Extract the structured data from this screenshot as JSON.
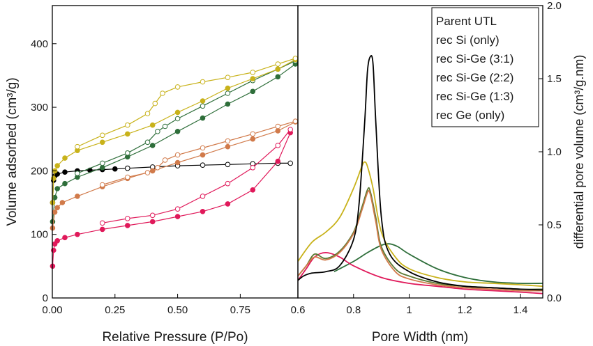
{
  "chart_data": [
    {
      "type": "scatter",
      "panel": "left",
      "xlabel": "Relative Pressure (P/Po)",
      "ylabel": "Volume adsorbed (cm³/g)",
      "xlim": [
        0,
        0.98
      ],
      "ylim": [
        0,
        460
      ],
      "x_ticks": [
        "0.00",
        "0.25",
        "0.50",
        "0.75"
      ],
      "y_ticks": [
        "0",
        "100",
        "200",
        "300",
        "400"
      ],
      "x_tick_values": [
        0,
        0.25,
        0.5,
        0.75
      ],
      "y_tick_values": [
        0,
        100,
        200,
        300,
        400
      ],
      "grid": false,
      "series": [
        {
          "color": "#000000",
          "adsorption": [
            [
              0.001,
              150
            ],
            [
              0.005,
              185
            ],
            [
              0.01,
              192
            ],
            [
              0.02,
              195
            ],
            [
              0.05,
              198
            ],
            [
              0.1,
              200
            ],
            [
              0.15,
              201
            ],
            [
              0.2,
              202
            ],
            [
              0.25,
              203
            ],
            [
              0.3,
              204
            ]
          ],
          "desorption": [
            [
              0.3,
              204
            ],
            [
              0.4,
              206
            ],
            [
              0.5,
              208
            ],
            [
              0.6,
              209
            ],
            [
              0.7,
              210
            ],
            [
              0.8,
              211
            ],
            [
              0.9,
              212
            ],
            [
              0.95,
              212
            ]
          ]
        },
        {
          "color": "#2e6e3a",
          "adsorption": [
            [
              0.001,
              120
            ],
            [
              0.01,
              158
            ],
            [
              0.02,
              172
            ],
            [
              0.05,
              180
            ],
            [
              0.1,
              190
            ],
            [
              0.2,
              205
            ],
            [
              0.3,
              222
            ],
            [
              0.4,
              240
            ],
            [
              0.5,
              262
            ],
            [
              0.6,
              283
            ],
            [
              0.7,
              305
            ],
            [
              0.8,
              325
            ],
            [
              0.9,
              348
            ],
            [
              0.97,
              368
            ]
          ],
          "desorption": [
            [
              0.97,
              373
            ],
            [
              0.9,
              360
            ],
            [
              0.8,
              342
            ],
            [
              0.7,
              322
            ],
            [
              0.6,
              302
            ],
            [
              0.5,
              282
            ],
            [
              0.45,
              270
            ],
            [
              0.42,
              262
            ],
            [
              0.38,
              245
            ],
            [
              0.3,
              228
            ],
            [
              0.2,
              212
            ],
            [
              0.1,
              196
            ]
          ]
        },
        {
          "color": "#c8b21a",
          "adsorption": [
            [
              0.001,
              150
            ],
            [
              0.005,
              188
            ],
            [
              0.01,
              200
            ],
            [
              0.02,
              208
            ],
            [
              0.05,
              220
            ],
            [
              0.1,
              232
            ],
            [
              0.2,
              245
            ],
            [
              0.3,
              258
            ],
            [
              0.4,
              272
            ],
            [
              0.5,
              292
            ],
            [
              0.6,
              310
            ],
            [
              0.7,
              330
            ],
            [
              0.8,
              345
            ],
            [
              0.9,
              360
            ],
            [
              0.97,
              375
            ]
          ],
          "desorption": [
            [
              0.97,
              377
            ],
            [
              0.9,
              368
            ],
            [
              0.8,
              355
            ],
            [
              0.7,
              347
            ],
            [
              0.6,
              340
            ],
            [
              0.5,
              332
            ],
            [
              0.44,
              322
            ],
            [
              0.41,
              306
            ],
            [
              0.38,
              290
            ],
            [
              0.3,
              272
            ],
            [
              0.2,
              256
            ],
            [
              0.1,
              238
            ]
          ]
        },
        {
          "color": "#d17a4a",
          "adsorption": [
            [
              0.001,
              110
            ],
            [
              0.01,
              135
            ],
            [
              0.02,
              142
            ],
            [
              0.04,
              150
            ],
            [
              0.1,
              160
            ],
            [
              0.2,
              175
            ],
            [
              0.3,
              188
            ],
            [
              0.4,
              200
            ],
            [
              0.5,
              213
            ],
            [
              0.6,
              225
            ],
            [
              0.7,
              238
            ],
            [
              0.8,
              250
            ],
            [
              0.9,
              263
            ],
            [
              0.97,
              277
            ]
          ],
          "desorption": [
            [
              0.97,
              278
            ],
            [
              0.9,
              270
            ],
            [
              0.8,
              258
            ],
            [
              0.7,
              247
            ],
            [
              0.6,
              236
            ],
            [
              0.5,
              225
            ],
            [
              0.45,
              217
            ],
            [
              0.42,
              205
            ],
            [
              0.38,
              197
            ],
            [
              0.3,
              190
            ],
            [
              0.2,
              178
            ]
          ]
        },
        {
          "color": "#e0195a",
          "adsorption": [
            [
              0.001,
              50
            ],
            [
              0.005,
              75
            ],
            [
              0.01,
              85
            ],
            [
              0.02,
              90
            ],
            [
              0.05,
              95
            ],
            [
              0.1,
              100
            ],
            [
              0.2,
              108
            ],
            [
              0.3,
              114
            ],
            [
              0.4,
              120
            ],
            [
              0.5,
              128
            ],
            [
              0.6,
              136
            ],
            [
              0.7,
              148
            ],
            [
              0.8,
              170
            ],
            [
              0.9,
              215
            ],
            [
              0.95,
              260
            ]
          ],
          "desorption": [
            [
              0.95,
              265
            ],
            [
              0.9,
              240
            ],
            [
              0.8,
              205
            ],
            [
              0.7,
              180
            ],
            [
              0.6,
              160
            ],
            [
              0.5,
              140
            ],
            [
              0.4,
              130
            ],
            [
              0.3,
              125
            ],
            [
              0.2,
              118
            ]
          ]
        }
      ]
    },
    {
      "type": "line",
      "panel": "right",
      "xlabel": "Pore Width (nm)",
      "ylabel": "differential pore volume (cm³/g.nm)",
      "xlim": [
        0.6,
        1.48
      ],
      "ylim": [
        0,
        2.0
      ],
      "x_ticks": [
        "0.6",
        "0.8",
        "1",
        "1.2",
        "1.4"
      ],
      "y_ticks": [
        "0.0",
        "0.5",
        "1.0",
        "1.5",
        "2.0"
      ],
      "x_tick_values": [
        0.6,
        0.8,
        1.0,
        1.2,
        1.4
      ],
      "y_tick_values": [
        0,
        0.5,
        1.0,
        1.5,
        2.0
      ],
      "y_axis_side": "right",
      "grid": false,
      "legend_position": "top-right",
      "series": [
        {
          "name": "Parent UTL",
          "color": "#000000",
          "x": [
            0.6,
            0.62,
            0.65,
            0.7,
            0.75,
            0.8,
            0.82,
            0.84,
            0.85,
            0.86,
            0.87,
            0.88,
            0.9,
            0.93,
            1.0,
            1.1,
            1.2,
            1.3,
            1.4,
            1.48
          ],
          "y": [
            0.12,
            0.15,
            0.17,
            0.18,
            0.22,
            0.4,
            0.65,
            1.2,
            1.55,
            1.65,
            1.6,
            1.2,
            0.55,
            0.3,
            0.18,
            0.11,
            0.08,
            0.07,
            0.06,
            0.055
          ]
        },
        {
          "name": "rec Si (only)",
          "color": "#2e6e3a",
          "x": [
            0.73,
            0.8,
            0.85,
            0.9,
            0.93,
            0.96,
            1.0,
            1.1,
            1.2,
            1.3,
            1.4,
            1.48
          ],
          "y": [
            0.18,
            0.25,
            0.31,
            0.36,
            0.37,
            0.35,
            0.3,
            0.2,
            0.14,
            0.11,
            0.1,
            0.1
          ]
        },
        {
          "name": "rec Si-Ge (3:1)",
          "color": "#5c7a34",
          "x": [
            0.6,
            0.63,
            0.66,
            0.7,
            0.75,
            0.8,
            0.83,
            0.85,
            0.86,
            0.88,
            0.9,
            0.95,
            1.0,
            1.1,
            1.2,
            1.3,
            1.4,
            1.48
          ],
          "y": [
            0.15,
            0.22,
            0.3,
            0.27,
            0.32,
            0.45,
            0.62,
            0.74,
            0.73,
            0.55,
            0.35,
            0.2,
            0.15,
            0.1,
            0.08,
            0.07,
            0.06,
            0.06
          ]
        },
        {
          "name": "rec Si-Ge (2:2)",
          "color": "#c8b21a",
          "x": [
            0.6,
            0.65,
            0.7,
            0.75,
            0.8,
            0.83,
            0.84,
            0.85,
            0.87,
            0.9,
            0.95,
            1.0,
            1.1,
            1.2,
            1.3,
            1.4,
            1.48
          ],
          "y": [
            0.25,
            0.38,
            0.45,
            0.55,
            0.75,
            0.9,
            0.93,
            0.9,
            0.75,
            0.45,
            0.28,
            0.2,
            0.14,
            0.11,
            0.1,
            0.09,
            0.08
          ]
        },
        {
          "name": "rec Si-Ge (1:3)",
          "color": "#d17a4a",
          "x": [
            0.6,
            0.63,
            0.66,
            0.7,
            0.75,
            0.8,
            0.83,
            0.85,
            0.86,
            0.88,
            0.9,
            0.95,
            1.0,
            1.1,
            1.2,
            1.3,
            1.4,
            1.48
          ],
          "y": [
            0.15,
            0.22,
            0.28,
            0.26,
            0.31,
            0.44,
            0.6,
            0.72,
            0.71,
            0.52,
            0.33,
            0.18,
            0.13,
            0.09,
            0.07,
            0.06,
            0.05,
            0.05
          ]
        },
        {
          "name": "rec Ge (only)",
          "color": "#e0195a",
          "x": [
            0.6,
            0.63,
            0.66,
            0.7,
            0.75,
            0.8,
            0.9,
            1.0,
            1.1,
            1.2,
            1.3,
            1.4,
            1.48
          ],
          "y": [
            0.12,
            0.2,
            0.28,
            0.31,
            0.28,
            0.22,
            0.14,
            0.1,
            0.08,
            0.06,
            0.05,
            0.04,
            0.03
          ]
        }
      ]
    }
  ]
}
